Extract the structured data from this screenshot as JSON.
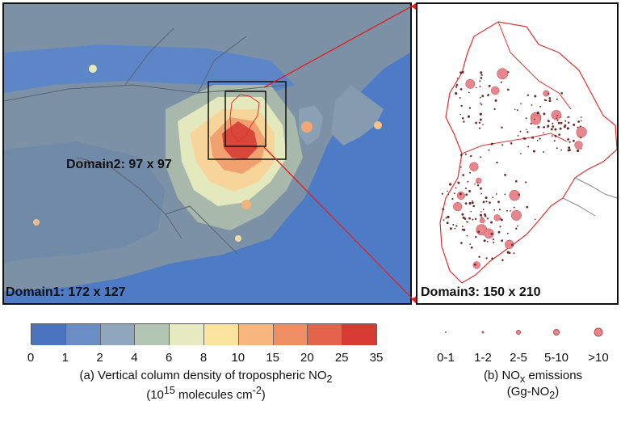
{
  "panel_a": {
    "domain1_label": "Domain1: 172 x 127",
    "domain2_label": "Domain2: 97 x 97"
  },
  "panel_b": {
    "domain3_label": "Domain3: 150 x 210"
  },
  "colorbar": {
    "ticks": [
      "0",
      "1",
      "2",
      "4",
      "6",
      "8",
      "10",
      "15",
      "20",
      "25",
      "35"
    ],
    "colors": [
      "#4a74bd",
      "#6b8dc6",
      "#8fa6bd",
      "#b3c5b3",
      "#e6ecc0",
      "#fde3a0",
      "#f9b67f",
      "#f08e63",
      "#e5624d",
      "#d73a33"
    ],
    "caption_line1": "(a) Vertical column density of tropospheric NO",
    "caption_line1_sub": "2",
    "caption_line2_pre": "(10",
    "caption_line2_sup": "15",
    "caption_line2_mid": " molecules cm",
    "caption_line2_sup2": "-2",
    "caption_line2_post": ")"
  },
  "emissions_legend": {
    "labels": [
      "0-1",
      "1-2",
      "2-5",
      "5-10",
      ">10"
    ],
    "sizes": [
      2,
      3,
      6,
      8,
      11
    ],
    "caption_line1_pre": "(b) NO",
    "caption_line1_sub": "x",
    "caption_line1_post": " emissions",
    "caption_line2_pre": "(Gg-NO",
    "caption_line2_sub": "2",
    "caption_line2_post": ")"
  },
  "colors": {
    "ocean": "#4f7cc7",
    "land_base": "#7c8fa3",
    "frame": "#111111",
    "connector": "#e02020",
    "boundary_red": "#e03030"
  }
}
